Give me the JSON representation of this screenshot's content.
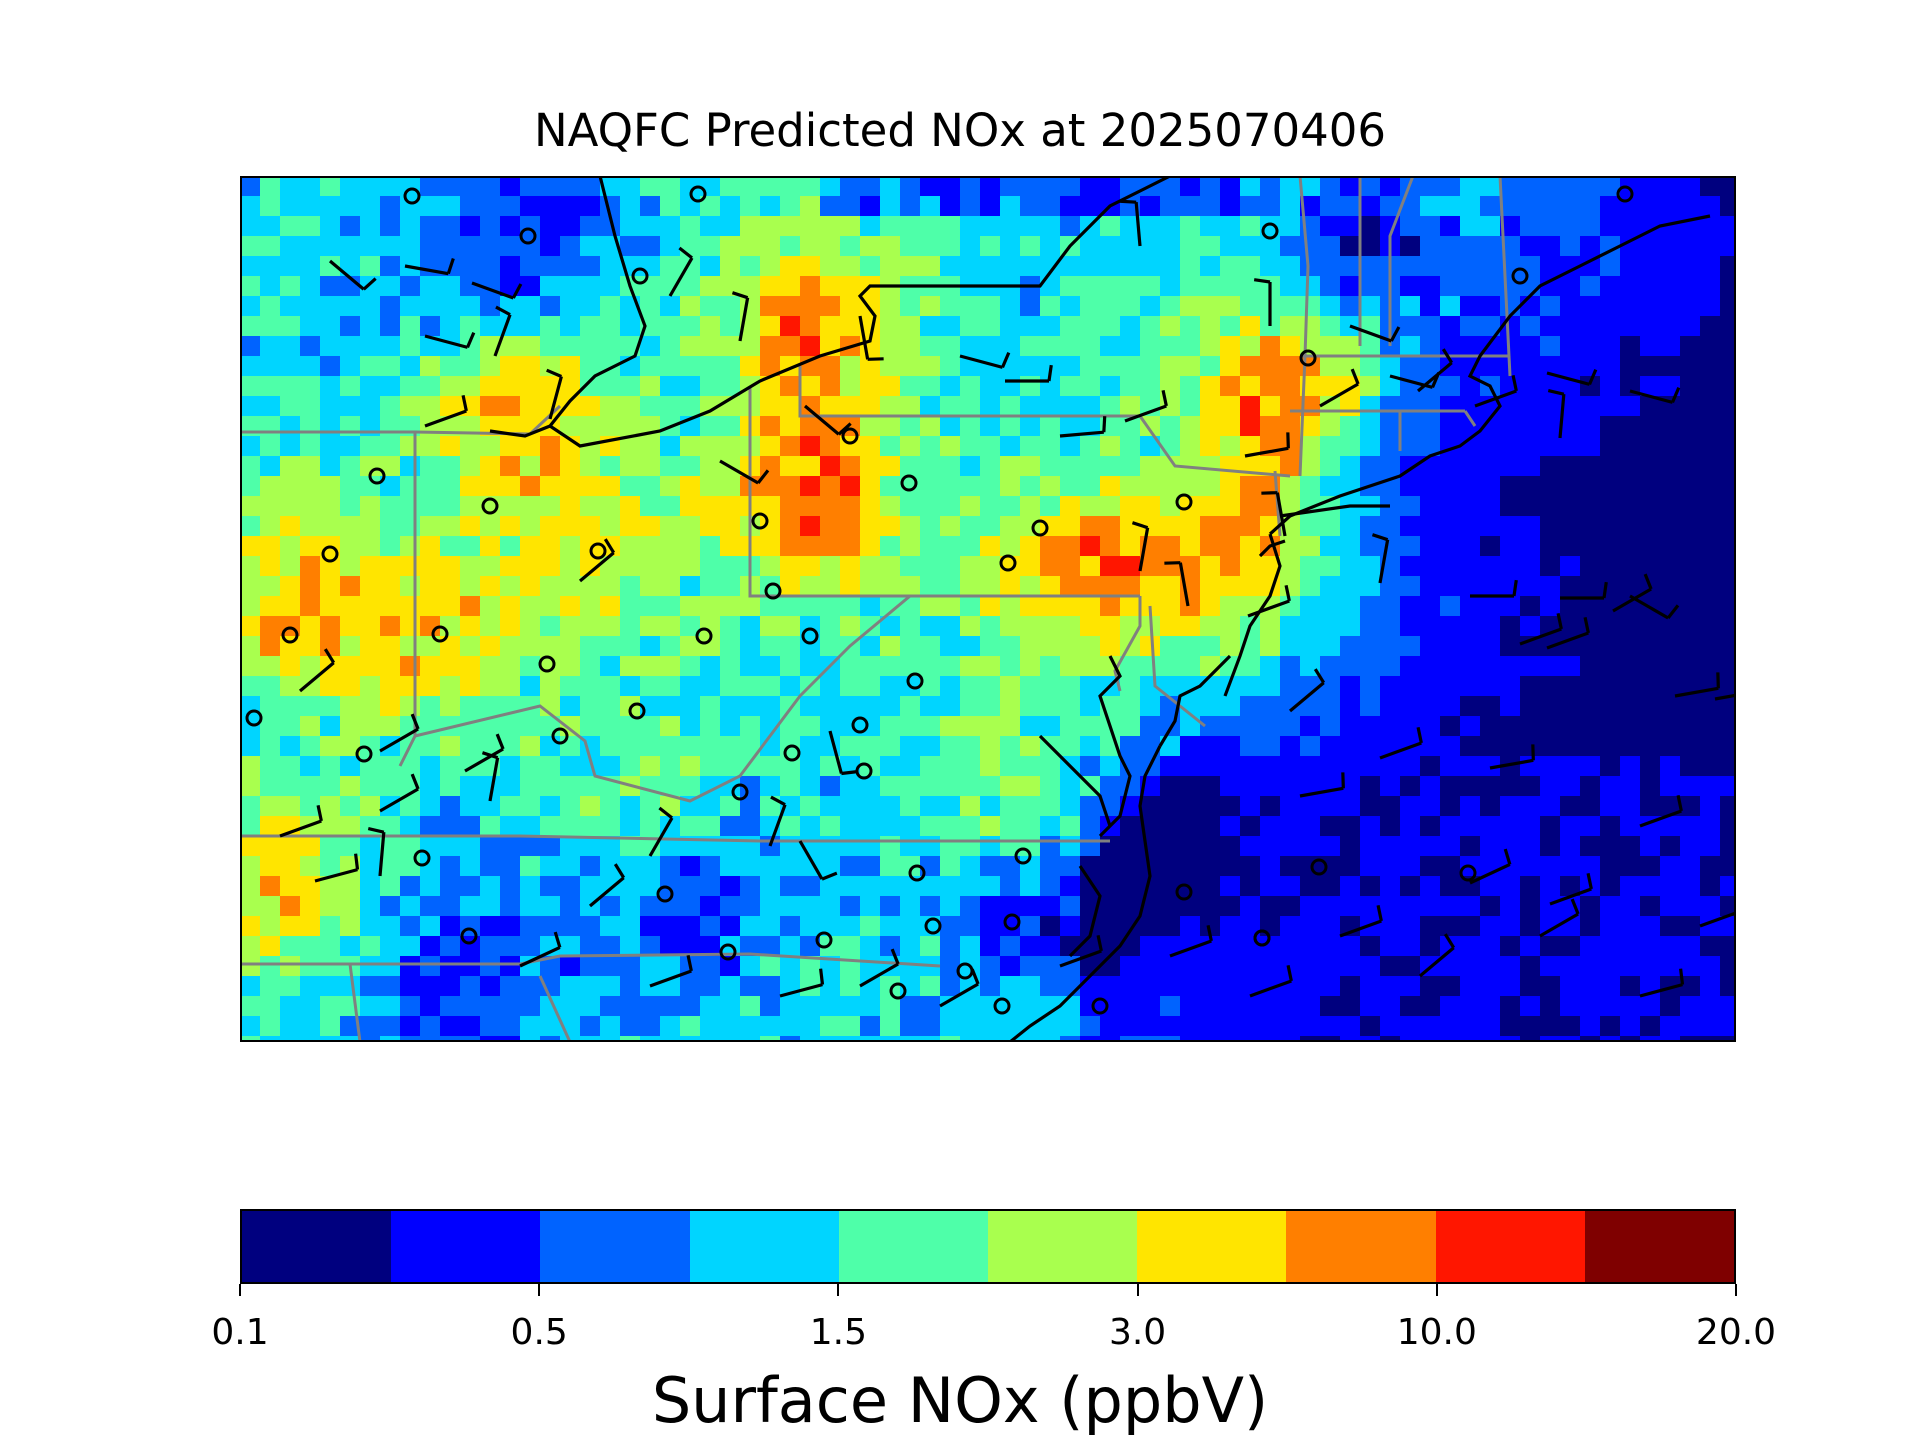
{
  "title": "NAQFC Predicted NOx at 2025070406",
  "colorbar": {
    "label": "Surface NOx (ppbV)",
    "colors": [
      "#00007f",
      "#0000ff",
      "#0063ff",
      "#00d5ff",
      "#4effa9",
      "#a9ff4e",
      "#ffe500",
      "#ff7f00",
      "#ff1600",
      "#7f0000"
    ],
    "ticks": [
      "0.1",
      "0.5",
      "1.5",
      "3.0",
      "10.0",
      "20.0"
    ]
  },
  "map_data": {
    "field": "Surface NOx",
    "units": "ppbV",
    "valid_time": "2025070406",
    "legend_position": "bottom",
    "features": [
      "state-borders",
      "coastline",
      "wind-barbs",
      "calm-wind-circles"
    ]
  }
}
